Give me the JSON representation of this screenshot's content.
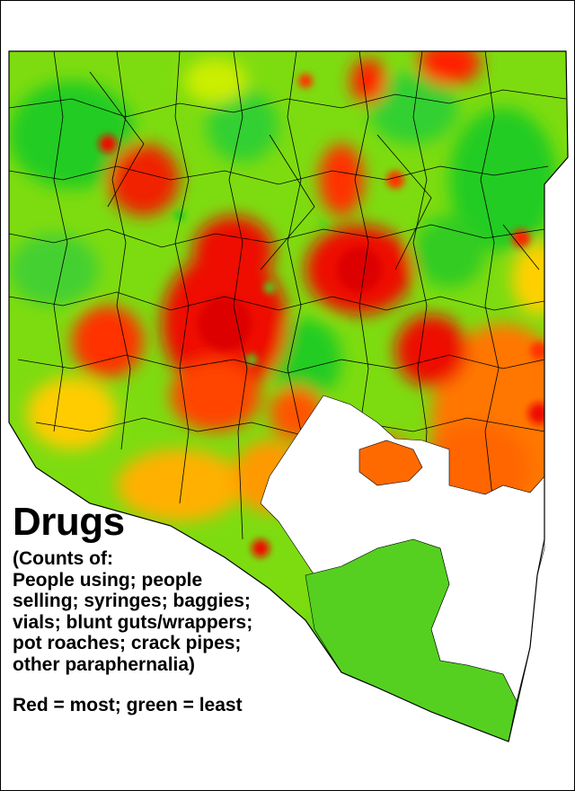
{
  "legend": {
    "title": "Drugs",
    "description_lines": [
      "(Counts of:",
      "People using; people",
      "selling; syringes; baggies;",
      "vials; blunt guts/wrappers;",
      "pot roaches; crack pipes;",
      "other paraphernalia)"
    ],
    "color_key": "Red = most; green = least"
  },
  "colors": {
    "most": "#ee1100",
    "high": "#ff5500",
    "mid": "#ffaa00",
    "low_mid": "#c8e800",
    "least": "#22cc22",
    "water": "#ffffff",
    "boundary": "#000000"
  },
  "icons": {
    "map": "choropleth-heatmap"
  }
}
